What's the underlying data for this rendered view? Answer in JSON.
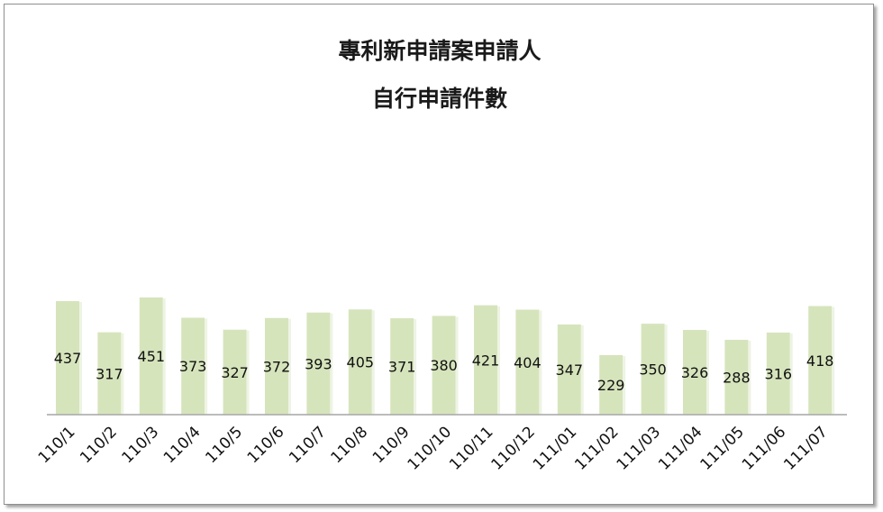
{
  "chart_data": {
    "type": "bar",
    "title": [
      "專利新申請案申請人",
      "自行申請件數"
    ],
    "xlabel": "",
    "ylabel": "",
    "grid": false,
    "legend": "none",
    "bar_color": "#d6e4bc",
    "categories": [
      "110/1",
      "110/2",
      "110/3",
      "110/4",
      "110/5",
      "110/6",
      "110/7",
      "110/8",
      "110/9",
      "110/10",
      "110/11",
      "110/12",
      "111/01",
      "111/02",
      "111/03",
      "111/04",
      "111/05",
      "111/06",
      "111/07"
    ],
    "values": [
      437,
      317,
      451,
      373,
      327,
      372,
      393,
      405,
      371,
      380,
      421,
      404,
      347,
      229,
      350,
      326,
      288,
      316,
      418
    ]
  }
}
